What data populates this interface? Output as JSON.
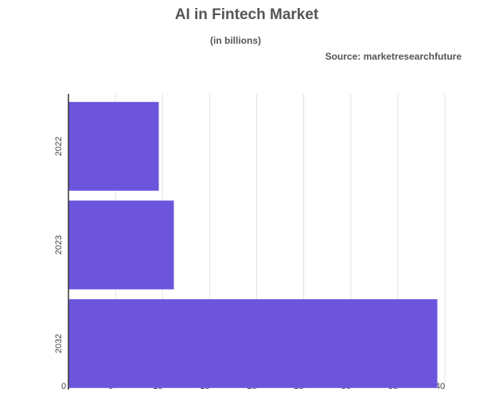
{
  "chart_data": {
    "type": "bar",
    "orientation": "horizontal",
    "title": "AI in Fintech Market",
    "subtitle": "(in billions)",
    "source": "Source: marketresearchfuture",
    "categories": [
      "2022",
      "2023",
      "2032"
    ],
    "values": [
      9.6,
      11.2,
      39.2
    ],
    "color": "#6c55dc",
    "xlim": [
      0,
      40
    ],
    "xticks": [
      0,
      5,
      10,
      15,
      20,
      25,
      30,
      35,
      40
    ],
    "grid": true
  }
}
